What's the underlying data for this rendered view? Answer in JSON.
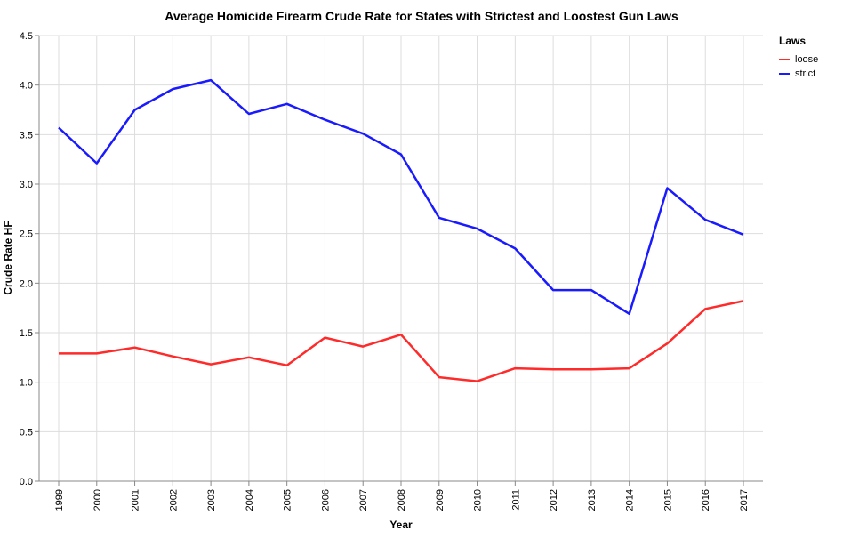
{
  "chart_data": {
    "type": "line",
    "title": "Average Homicide Firearm Crude Rate for States with Strictest and Loostest Gun Laws",
    "xlabel": "Year",
    "ylabel": "Crude Rate HF",
    "ylim": [
      0,
      4.5
    ],
    "yticks": [
      "0.0",
      "0.5",
      "1.0",
      "1.5",
      "2.0",
      "2.5",
      "3.0",
      "3.5",
      "4.0",
      "4.5"
    ],
    "x": [
      "1999",
      "2000",
      "2001",
      "2002",
      "2003",
      "2004",
      "2005",
      "2006",
      "2007",
      "2008",
      "2009",
      "2010",
      "2011",
      "2012",
      "2013",
      "2014",
      "2015",
      "2016",
      "2017"
    ],
    "grid": true,
    "legend": {
      "title": "Laws",
      "position": "top-right"
    },
    "series": [
      {
        "name": "loose",
        "color": "#ff2a2a",
        "values": [
          1.29,
          1.29,
          1.35,
          1.26,
          1.18,
          1.25,
          1.17,
          1.45,
          1.36,
          1.48,
          1.05,
          1.01,
          1.14,
          1.13,
          1.13,
          1.14,
          1.39,
          1.74,
          1.82
        ]
      },
      {
        "name": "strict",
        "color": "#1a1aff",
        "values": [
          3.57,
          3.21,
          3.75,
          3.96,
          4.05,
          3.71,
          3.81,
          3.65,
          3.51,
          3.3,
          2.66,
          2.55,
          2.35,
          1.93,
          1.93,
          1.69,
          2.96,
          2.64,
          2.49
        ]
      }
    ]
  }
}
